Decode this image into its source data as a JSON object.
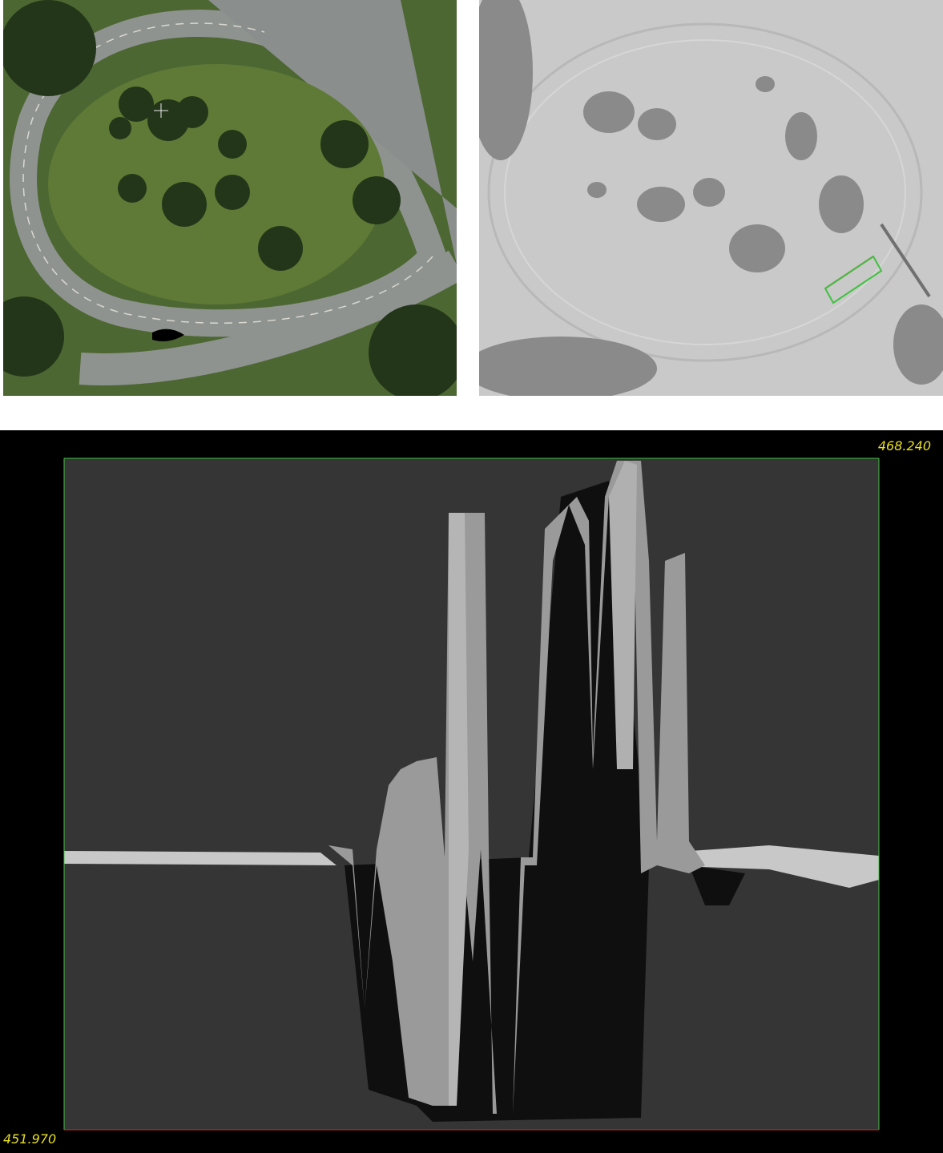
{
  "profile": {
    "max_label": "468.240",
    "min_label": "451.970"
  }
}
